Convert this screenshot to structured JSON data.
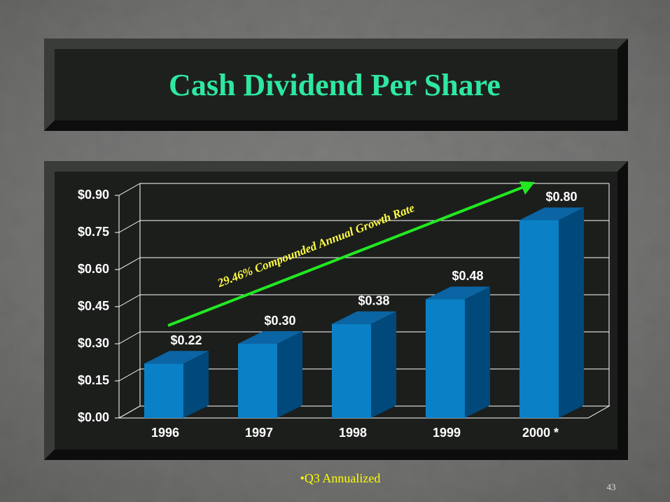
{
  "chart_data": {
    "type": "bar3d",
    "title": "Cash Dividend Per Share",
    "categories": [
      "1996",
      "1997",
      "1998",
      "1999",
      "2000 *"
    ],
    "values": [
      0.22,
      0.3,
      0.38,
      0.48,
      0.8
    ],
    "value_labels": [
      "$0.22",
      "$0.30",
      "$0.38",
      "$0.48",
      "$0.80"
    ],
    "color": "#0a80c6",
    "ylim": [
      0,
      0.9
    ],
    "yticks": [
      {
        "value": 0,
        "label": "$0.00"
      },
      {
        "value": 0.15,
        "label": "$0.15"
      },
      {
        "value": 0.3,
        "label": "$0.30"
      },
      {
        "value": 0.45,
        "label": "$0.45"
      },
      {
        "value": 0.6,
        "label": "$0.60"
      },
      {
        "value": 0.75,
        "label": "$0.75"
      },
      {
        "value": 0.9,
        "label": "$0.90"
      }
    ],
    "grid": true,
    "annotation": "29.46% Compounded Annual Growth Rate",
    "footnote": "•Q3 Annualized",
    "page_number": "43"
  }
}
